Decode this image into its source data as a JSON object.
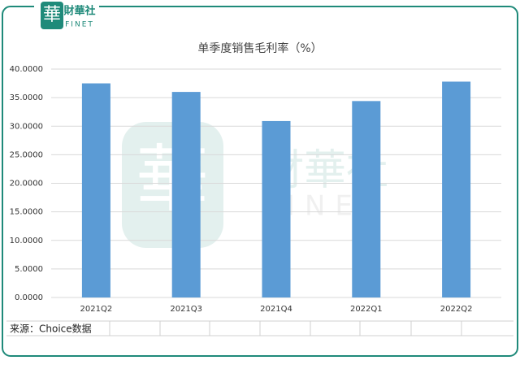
{
  "logo": {
    "mark": "華",
    "name": "財華社",
    "en": "FINET"
  },
  "chart_data": {
    "type": "bar",
    "title": "单季度销售毛利率（%）",
    "categories": [
      "2021Q2",
      "2021Q3",
      "2021Q4",
      "2022Q1",
      "2022Q2"
    ],
    "values": [
      37.5,
      36.0,
      30.9,
      34.4,
      37.8
    ],
    "color": "#5b9bd5",
    "ylim": [
      0,
      40
    ],
    "yticks": [
      {
        "value": 0,
        "label": "0.0000"
      },
      {
        "value": 5,
        "label": "5.0000"
      },
      {
        "value": 10,
        "label": "10.0000"
      },
      {
        "value": 15,
        "label": "15.0000"
      },
      {
        "value": 20,
        "label": "20.0000"
      },
      {
        "value": 25,
        "label": "25.0000"
      },
      {
        "value": 30,
        "label": "30.0000"
      },
      {
        "value": 35,
        "label": "35.0000"
      },
      {
        "value": 40,
        "label": "40.0000"
      }
    ],
    "grid": true,
    "source": "来源：Choice数据"
  }
}
